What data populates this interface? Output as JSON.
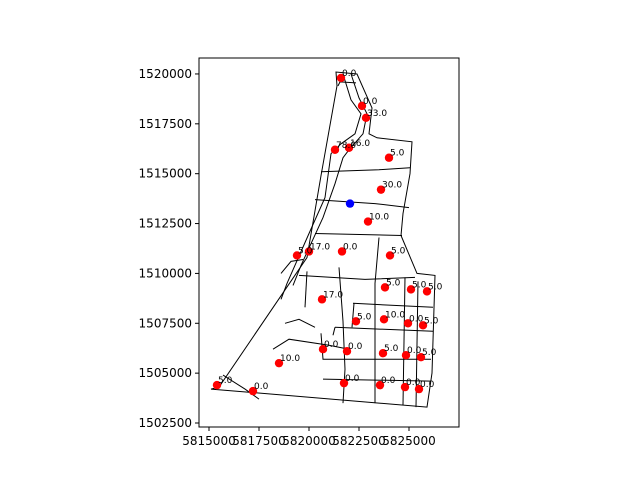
{
  "chart_data": {
    "type": "scatter",
    "title": "",
    "xlabel": "",
    "ylabel": "",
    "xlim": [
      5814500,
      5827500
    ],
    "ylim": [
      1502300,
      1520800
    ],
    "grid": false,
    "x_ticks": [
      5815000,
      5817500,
      5820000,
      5822500,
      5825000
    ],
    "x_tick_labels": [
      "5815000",
      "5817500",
      "5820000",
      "5822500",
      "5825000"
    ],
    "y_ticks": [
      1502500,
      1505000,
      1507500,
      1510000,
      1512500,
      1515000,
      1517500,
      1520000
    ],
    "y_tick_labels": [
      "1502500",
      "1505000",
      "1507500",
      "1510000",
      "1512500",
      "1515000",
      "1517500",
      "1520000"
    ],
    "colors": {
      "points": "#ff0000",
      "highlight": "#0000ff",
      "outline": "#000000"
    },
    "highlight_point": {
      "x": 5822050,
      "y": 1513500
    },
    "points": [
      {
        "x": 5821600,
        "y": 1519800,
        "label": "0.0"
      },
      {
        "x": 5822650,
        "y": 1518400,
        "label": "0.0"
      },
      {
        "x": 5822850,
        "y": 1517800,
        "label": "33.0"
      },
      {
        "x": 5821300,
        "y": 1516200,
        "label": "78.0"
      },
      {
        "x": 5822000,
        "y": 1516300,
        "label": "16.0"
      },
      {
        "x": 5824000,
        "y": 1515800,
        "label": "5.0"
      },
      {
        "x": 5823600,
        "y": 1514200,
        "label": "30.0"
      },
      {
        "x": 5822950,
        "y": 1512600,
        "label": "10.0"
      },
      {
        "x": 5819400,
        "y": 1510900,
        "label": "5.0"
      },
      {
        "x": 5820000,
        "y": 1511100,
        "label": "17.0"
      },
      {
        "x": 5821650,
        "y": 1511100,
        "label": "0.0"
      },
      {
        "x": 5824050,
        "y": 1510900,
        "label": "5.0"
      },
      {
        "x": 5823800,
        "y": 1509300,
        "label": "5.0"
      },
      {
        "x": 5825100,
        "y": 1509200,
        "label": "5.0"
      },
      {
        "x": 5825900,
        "y": 1509100,
        "label": "5.0"
      },
      {
        "x": 5820650,
        "y": 1508700,
        "label": "17.0"
      },
      {
        "x": 5822350,
        "y": 1507600,
        "label": "5.0"
      },
      {
        "x": 5823750,
        "y": 1507700,
        "label": "10.0"
      },
      {
        "x": 5824950,
        "y": 1507500,
        "label": "0.0"
      },
      {
        "x": 5825700,
        "y": 1507400,
        "label": "5.0"
      },
      {
        "x": 5820700,
        "y": 1506200,
        "label": "0.0"
      },
      {
        "x": 5821900,
        "y": 1506100,
        "label": "0.0"
      },
      {
        "x": 5823700,
        "y": 1506000,
        "label": "5.0"
      },
      {
        "x": 5824850,
        "y": 1505900,
        "label": "0.0"
      },
      {
        "x": 5825600,
        "y": 1505800,
        "label": "5.0"
      },
      {
        "x": 5818500,
        "y": 1505500,
        "label": "10.0"
      },
      {
        "x": 5821750,
        "y": 1504500,
        "label": "0.0"
      },
      {
        "x": 5823550,
        "y": 1504400,
        "label": "0.0"
      },
      {
        "x": 5824800,
        "y": 1504300,
        "label": "0.0"
      },
      {
        "x": 5825500,
        "y": 1504200,
        "label": "0.0"
      },
      {
        "x": 5815400,
        "y": 1504400,
        "label": "5.0"
      },
      {
        "x": 5817200,
        "y": 1504100,
        "label": "0.0"
      }
    ],
    "outline": [
      [
        5815500,
        1504300
      ],
      [
        5819900,
        1510800
      ],
      [
        5820600,
        1514900
      ],
      [
        5821400,
        1519400
      ],
      [
        5821350,
        1520100
      ],
      [
        5822400,
        1520000
      ],
      [
        5823150,
        1518300
      ],
      [
        5823000,
        1517000
      ],
      [
        5823400,
        1516800
      ],
      [
        5825150,
        1516600
      ],
      [
        5825050,
        1515000
      ],
      [
        5824700,
        1513000
      ],
      [
        5824600,
        1511900
      ],
      [
        5825400,
        1510000
      ],
      [
        5826300,
        1509900
      ],
      [
        5826150,
        1505000
      ],
      [
        5825900,
        1503300
      ],
      [
        5815100,
        1504200
      ]
    ],
    "parcel_lines": [
      [
        [
          5820300,
          1513700
        ],
        [
          5823300,
          1513500
        ],
        [
          5825000,
          1513300
        ]
      ],
      [
        [
          5820600,
          1515100
        ],
        [
          5823500,
          1515200
        ],
        [
          5825050,
          1515300
        ]
      ],
      [
        [
          5820300,
          1512000
        ],
        [
          5824650,
          1511900
        ]
      ],
      [
        [
          5819500,
          1509900
        ],
        [
          5822800,
          1509700
        ],
        [
          5825300,
          1509800
        ]
      ],
      [
        [
          5821500,
          1510300
        ],
        [
          5821700,
          1507600
        ],
        [
          5821800,
          1505200
        ],
        [
          5821700,
          1503500
        ]
      ],
      [
        [
          5823500,
          1511800
        ],
        [
          5823300,
          1509500
        ],
        [
          5823300,
          1503500
        ]
      ],
      [
        [
          5824800,
          1509800
        ],
        [
          5824700,
          1503400
        ]
      ],
      [
        [
          5825450,
          1509600
        ],
        [
          5825350,
          1503300
        ]
      ],
      [
        [
          5822200,
          1508500
        ],
        [
          5826200,
          1508300
        ]
      ],
      [
        [
          5821300,
          1507300
        ],
        [
          5826200,
          1507100
        ]
      ],
      [
        [
          5820600,
          1507000
        ],
        [
          5820700,
          1505700
        ],
        [
          5826100,
          1505700
        ]
      ],
      [
        [
          5820700,
          1504700
        ],
        [
          5826100,
          1504600
        ]
      ],
      [
        [
          5822250,
          1508500
        ],
        [
          5822150,
          1507300
        ]
      ],
      [
        [
          5821300,
          1507300
        ],
        [
          5821200,
          1506900
        ]
      ],
      [
        [
          5819900,
          1510100
        ],
        [
          5819800,
          1508300
        ]
      ],
      [
        [
          5818200,
          1506200
        ],
        [
          5819000,
          1506700
        ],
        [
          5821000,
          1506400
        ],
        [
          5822000,
          1506200
        ]
      ],
      [
        [
          5815700,
          1504900
        ],
        [
          5816800,
          1504200
        ],
        [
          5817500,
          1503700
        ]
      ],
      [
        [
          5821450,
          1519400
        ],
        [
          5821550,
          1519600
        ],
        [
          5822350,
          1519550
        ]
      ],
      [
        [
          5818600,
          1510000
        ],
        [
          5819100,
          1510600
        ],
        [
          5819700,
          1510700
        ]
      ]
    ],
    "river": [
      [
        [
          5821700,
          1520000
        ],
        [
          5822100,
          1518700
        ],
        [
          5822600,
          1518000
        ],
        [
          5822300,
          1517000
        ],
        [
          5821600,
          1516500
        ],
        [
          5821100,
          1516000
        ],
        [
          5820800,
          1513800
        ],
        [
          5820000,
          1512000
        ],
        [
          5818900,
          1509500
        ],
        [
          5818600,
          1508700
        ]
      ],
      [
        [
          5822100,
          1520000
        ],
        [
          5822500,
          1518800
        ],
        [
          5822900,
          1518000
        ],
        [
          5822700,
          1517000
        ],
        [
          5822000,
          1516200
        ],
        [
          5821700,
          1515800
        ],
        [
          5821300,
          1514500
        ],
        [
          5820700,
          1512800
        ],
        [
          5819600,
          1510400
        ],
        [
          5819200,
          1509400
        ]
      ],
      [
        [
          5818800,
          1507500
        ],
        [
          5819500,
          1507700
        ],
        [
          5820300,
          1507300
        ]
      ]
    ]
  }
}
